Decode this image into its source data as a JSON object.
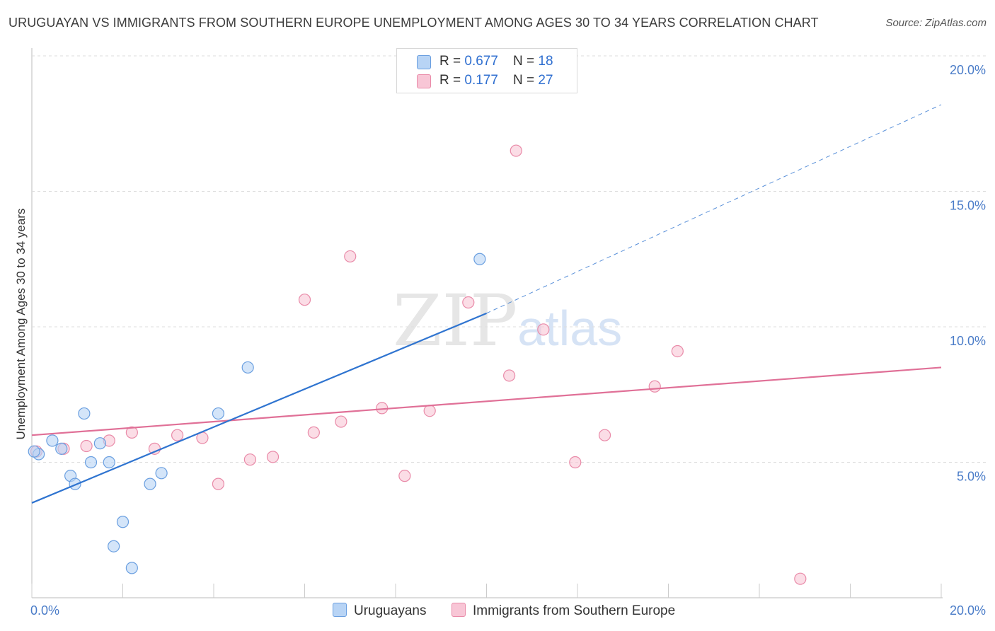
{
  "title": "URUGUAYAN VS IMMIGRANTS FROM SOUTHERN EUROPE UNEMPLOYMENT AMONG AGES 30 TO 34 YEARS CORRELATION CHART",
  "source": "Source: ZipAtlas.com",
  "watermark": {
    "zip": "ZIP",
    "atlas": "atlas"
  },
  "colors": {
    "blue_fill": "#b8d4f5",
    "blue_stroke": "#6a9fe0",
    "blue_line": "#2f74d0",
    "pink_fill": "#f8c6d6",
    "pink_stroke": "#e98aa8",
    "pink_line": "#e07097"
  },
  "legend_top": {
    "rows": [
      {
        "r_label": "R = ",
        "r_value": "0.677",
        "n_label": "N = ",
        "n_value": "18"
      },
      {
        "r_label": "R = ",
        "r_value": "0.177",
        "n_label": "N = ",
        "n_value": "27"
      }
    ]
  },
  "chart_data": {
    "type": "scatter",
    "title": "URUGUAYAN VS IMMIGRANTS FROM SOUTHERN EUROPE UNEMPLOYMENT AMONG AGES 30 TO 34 YEARS CORRELATION CHART",
    "xlabel": "",
    "ylabel": "Unemployment Among Ages 30 to 34 years",
    "xlim": [
      0,
      20
    ],
    "ylim": [
      0,
      20
    ],
    "x_tick_labels": [
      "0.0%",
      "20.0%"
    ],
    "y_tick_values": [
      5,
      10,
      15,
      20
    ],
    "y_tick_labels": [
      "5.0%",
      "10.0%",
      "15.0%",
      "20.0%"
    ],
    "series": [
      {
        "name": "Uruguayans",
        "points": [
          {
            "x": 0.15,
            "y": 5.3
          },
          {
            "x": 0.45,
            "y": 5.8
          },
          {
            "x": 0.65,
            "y": 5.5
          },
          {
            "x": 0.85,
            "y": 4.5
          },
          {
            "x": 0.95,
            "y": 4.2
          },
          {
            "x": 1.15,
            "y": 6.8
          },
          {
            "x": 1.3,
            "y": 5.0
          },
          {
            "x": 1.5,
            "y": 5.7
          },
          {
            "x": 1.7,
            "y": 5.0
          },
          {
            "x": 2.0,
            "y": 2.8
          },
          {
            "x": 1.8,
            "y": 1.9
          },
          {
            "x": 2.2,
            "y": 1.1
          },
          {
            "x": 2.6,
            "y": 4.2
          },
          {
            "x": 2.85,
            "y": 4.6
          },
          {
            "x": 4.1,
            "y": 6.8
          },
          {
            "x": 4.75,
            "y": 8.5
          },
          {
            "x": 9.85,
            "y": 12.5
          },
          {
            "x": 0.05,
            "y": 5.4
          }
        ],
        "trend": {
          "x0": 0,
          "y0": 3.5,
          "x1": 10.0,
          "y1": 10.5,
          "dashed_to_x": 20,
          "dashed_to_y": 18.2
        }
      },
      {
        "name": "Immigrants from Southern Europe",
        "points": [
          {
            "x": 0.1,
            "y": 5.4
          },
          {
            "x": 0.7,
            "y": 5.5
          },
          {
            "x": 1.2,
            "y": 5.6
          },
          {
            "x": 1.7,
            "y": 5.8
          },
          {
            "x": 2.2,
            "y": 6.1
          },
          {
            "x": 2.7,
            "y": 5.5
          },
          {
            "x": 3.2,
            "y": 6.0
          },
          {
            "x": 3.75,
            "y": 5.9
          },
          {
            "x": 4.1,
            "y": 4.2
          },
          {
            "x": 4.8,
            "y": 5.1
          },
          {
            "x": 5.3,
            "y": 5.2
          },
          {
            "x": 6.0,
            "y": 11.0
          },
          {
            "x": 6.2,
            "y": 6.1
          },
          {
            "x": 6.8,
            "y": 6.5
          },
          {
            "x": 7.0,
            "y": 12.6
          },
          {
            "x": 7.7,
            "y": 7.0
          },
          {
            "x": 8.2,
            "y": 4.5
          },
          {
            "x": 8.75,
            "y": 6.9
          },
          {
            "x": 9.6,
            "y": 10.9
          },
          {
            "x": 10.5,
            "y": 8.2
          },
          {
            "x": 10.65,
            "y": 16.5
          },
          {
            "x": 11.25,
            "y": 9.9
          },
          {
            "x": 11.95,
            "y": 5.0
          },
          {
            "x": 12.6,
            "y": 6.0
          },
          {
            "x": 13.7,
            "y": 7.8
          },
          {
            "x": 14.2,
            "y": 9.1
          },
          {
            "x": 16.9,
            "y": 0.7
          }
        ],
        "trend": {
          "x0": 0,
          "y0": 6.0,
          "x1": 20,
          "y1": 8.5
        }
      }
    ],
    "legend": [
      "Uruguayans",
      "Immigrants from Southern Europe"
    ]
  }
}
